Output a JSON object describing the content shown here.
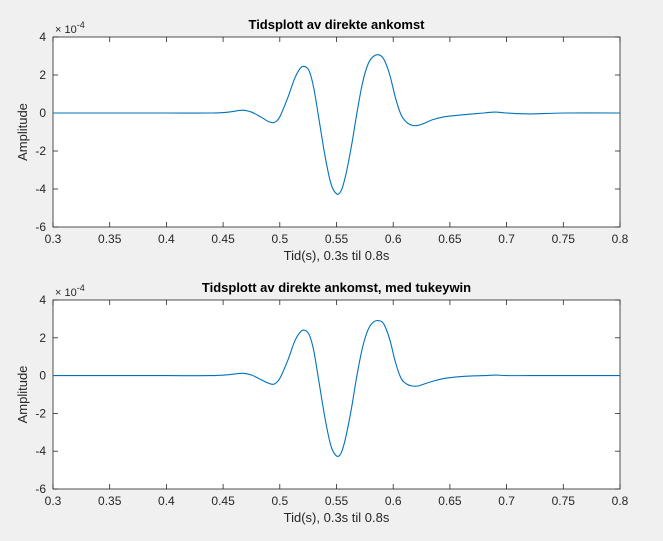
{
  "chart_data": [
    {
      "type": "line",
      "title": "Tidsplott av direkte ankomst",
      "xlabel": "Tid(s), 0.3s til 0.8s",
      "ylabel": "Amplitude",
      "exponent_base": "× 10",
      "exponent_power": "-4",
      "xlim": [
        0.3,
        0.8
      ],
      "ylim": [
        -6,
        4
      ],
      "xticks": [
        0.3,
        0.35,
        0.4,
        0.45,
        0.5,
        0.55,
        0.6,
        0.65,
        0.7,
        0.75,
        0.8
      ],
      "xtick_labels": [
        "0.3",
        "0.35",
        "0.4",
        "0.45",
        "0.5",
        "0.55",
        "0.6",
        "0.65",
        "0.7",
        "0.75",
        "0.8"
      ],
      "yticks": [
        -6,
        -4,
        -2,
        0,
        2,
        4
      ],
      "ytick_labels": [
        "-6",
        "-4",
        "-2",
        "0",
        "2",
        "4"
      ],
      "grid": false,
      "color": "#0072bd",
      "series": [
        {
          "x": [
            0.3,
            0.35,
            0.4,
            0.44,
            0.455,
            0.467,
            0.475,
            0.483,
            0.49,
            0.495,
            0.5,
            0.507,
            0.513,
            0.518,
            0.522,
            0.526,
            0.53,
            0.535,
            0.54,
            0.545,
            0.55,
            0.554,
            0.558,
            0.563,
            0.568,
            0.573,
            0.578,
            0.583,
            0.588,
            0.592,
            0.597,
            0.602,
            0.607,
            0.612,
            0.617,
            0.622,
            0.627,
            0.635,
            0.645,
            0.66,
            0.68,
            0.69,
            0.7,
            0.72,
            0.75,
            0.8
          ],
          "y": [
            0,
            0,
            0,
            0,
            0.05,
            0.15,
            0.05,
            -0.2,
            -0.45,
            -0.5,
            -0.2,
            0.8,
            1.8,
            2.35,
            2.45,
            2.2,
            1.3,
            -0.5,
            -2.3,
            -3.7,
            -4.25,
            -4.1,
            -3.3,
            -1.8,
            0,
            1.6,
            2.6,
            3.0,
            3.05,
            2.8,
            2.0,
            0.8,
            -0.1,
            -0.5,
            -0.65,
            -0.65,
            -0.55,
            -0.35,
            -0.2,
            -0.1,
            0.0,
            0.05,
            0.0,
            -0.05,
            0.0,
            0.0
          ]
        }
      ]
    },
    {
      "type": "line",
      "title": "Tidsplott av direkte ankomst, med tukeywin",
      "xlabel": "Tid(s), 0.3s til 0.8s",
      "ylabel": "Amplitude",
      "exponent_base": "× 10",
      "exponent_power": "-4",
      "xlim": [
        0.3,
        0.8
      ],
      "ylim": [
        -6,
        4
      ],
      "xticks": [
        0.3,
        0.35,
        0.4,
        0.45,
        0.5,
        0.55,
        0.6,
        0.65,
        0.7,
        0.75,
        0.8
      ],
      "xtick_labels": [
        "0.3",
        "0.35",
        "0.4",
        "0.45",
        "0.5",
        "0.55",
        "0.6",
        "0.65",
        "0.7",
        "0.75",
        "0.8"
      ],
      "yticks": [
        -6,
        -4,
        -2,
        0,
        2,
        4
      ],
      "ytick_labels": [
        "-6",
        "-4",
        "-2",
        "0",
        "2",
        "4"
      ],
      "grid": false,
      "color": "#0072bd",
      "series": [
        {
          "x": [
            0.3,
            0.35,
            0.4,
            0.44,
            0.455,
            0.467,
            0.475,
            0.483,
            0.49,
            0.495,
            0.5,
            0.507,
            0.513,
            0.518,
            0.522,
            0.526,
            0.53,
            0.535,
            0.54,
            0.545,
            0.55,
            0.554,
            0.558,
            0.563,
            0.568,
            0.573,
            0.578,
            0.583,
            0.588,
            0.592,
            0.597,
            0.602,
            0.607,
            0.612,
            0.617,
            0.622,
            0.627,
            0.635,
            0.645,
            0.66,
            0.68,
            0.69,
            0.7,
            0.72,
            0.75,
            0.8
          ],
          "y": [
            0,
            0,
            0,
            0,
            0.05,
            0.12,
            0.03,
            -0.2,
            -0.4,
            -0.45,
            -0.15,
            0.8,
            1.8,
            2.3,
            2.4,
            2.15,
            1.3,
            -0.5,
            -2.3,
            -3.7,
            -4.25,
            -4.1,
            -3.3,
            -1.8,
            0,
            1.5,
            2.45,
            2.85,
            2.9,
            2.7,
            1.9,
            0.7,
            -0.15,
            -0.45,
            -0.55,
            -0.55,
            -0.45,
            -0.3,
            -0.15,
            -0.05,
            0.0,
            0.03,
            0.0,
            0.0,
            0.0,
            0.0
          ]
        }
      ]
    }
  ]
}
